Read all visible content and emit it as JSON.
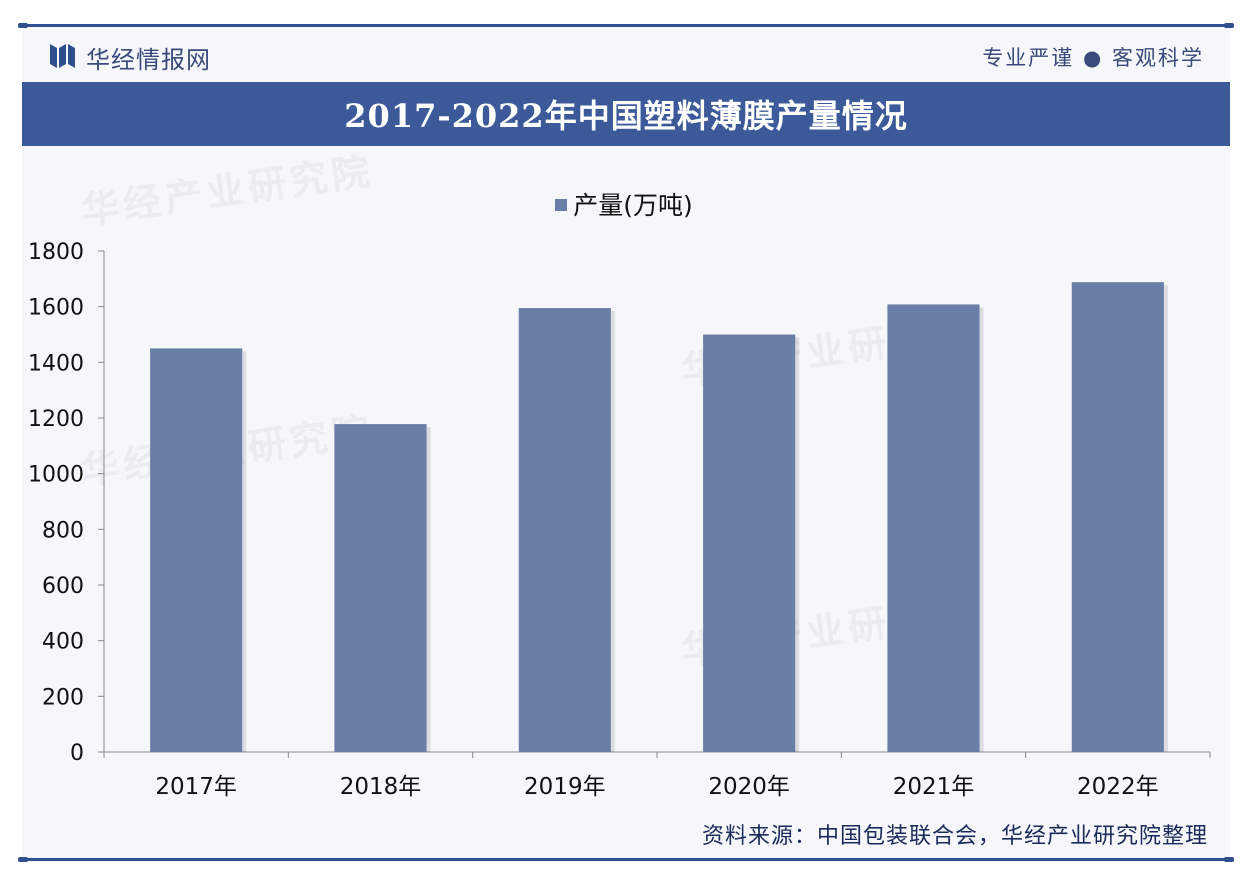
{
  "header": {
    "brand": "华经情报网",
    "slogan": "专业严谨 ● 客观科学"
  },
  "title": "2017-2022年中国塑料薄膜产量情况",
  "watermark": "华经产业研究院",
  "footer": {
    "source": "资料来源：中国包装联合会，华经产业研究院整理"
  },
  "colors": {
    "accent": "#3c5a9a",
    "bar": "#6a7fa8"
  },
  "chart_data": {
    "type": "bar",
    "categories": [
      "2017年",
      "2018年",
      "2019年",
      "2020年",
      "2021年",
      "2022年"
    ],
    "series": [
      {
        "name": "产量(万吨)",
        "values": [
          1450,
          1178,
          1595,
          1500,
          1608,
          1688
        ]
      }
    ],
    "ylim": [
      0,
      1800
    ],
    "yticks": [
      0,
      200,
      400,
      600,
      800,
      1000,
      1200,
      1400,
      1600,
      1800
    ],
    "legend_position": "top-center",
    "grid": false
  }
}
